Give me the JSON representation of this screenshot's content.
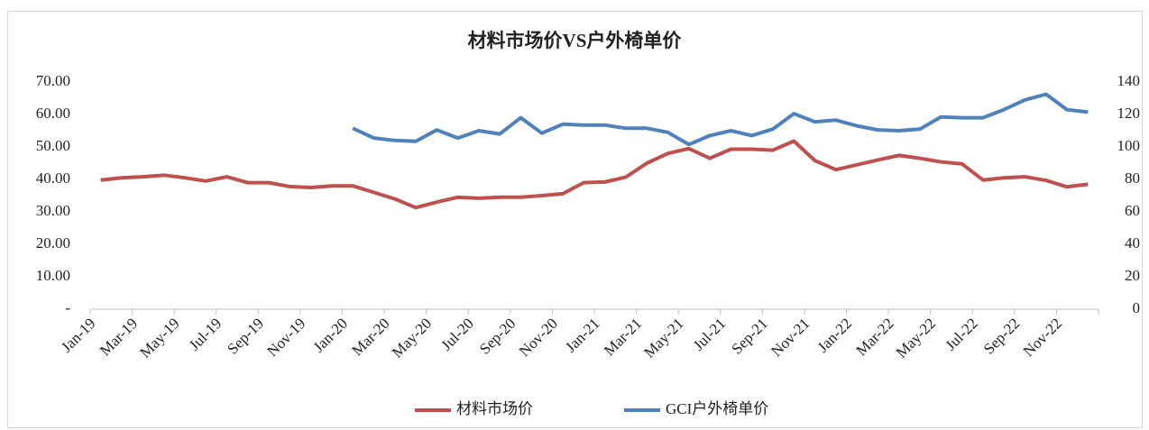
{
  "chart_data": {
    "type": "line",
    "title": "材料市场价VS户外椅单价",
    "categories": [
      "Jan-19",
      null,
      "Mar-19",
      null,
      "May-19",
      null,
      "Jul-19",
      null,
      "Sep-19",
      null,
      "Nov-19",
      null,
      "Jan-20",
      null,
      "Mar-20",
      null,
      "May-20",
      null,
      "Jul-20",
      null,
      "Sep-20",
      null,
      "Nov-20",
      null,
      "Jan-21",
      null,
      "Mar-21",
      null,
      "May-21",
      null,
      "Jul-21",
      null,
      "Sep-21",
      null,
      "Nov-21",
      null,
      "Jan-22",
      null,
      "Mar-22",
      null,
      "May-22",
      null,
      "Jul-22",
      null,
      "Sep-22",
      null,
      "Nov-22",
      null
    ],
    "series": [
      {
        "name": "材料市场价",
        "color": "#c0504d",
        "values": [
          39.8,
          40.5,
          40.8,
          41.3,
          40.5,
          39.5,
          40.8,
          39,
          39,
          37.8,
          37.5,
          38,
          38,
          36,
          34,
          31.3,
          33,
          34.5,
          34.2,
          34.5,
          34.5,
          35,
          35.6,
          39,
          39.2,
          40.7,
          45,
          48,
          49.5,
          46.5,
          49.3,
          49.3,
          49,
          51.8,
          45.8,
          43,
          44.5,
          46,
          47.4,
          46.5,
          45.4,
          44.8,
          39.8,
          40.5,
          40.8,
          39.7,
          37.7,
          38.5
        ]
      },
      {
        "name": "GCI户外椅单价",
        "color": "#4f81bd",
        "axis": "y2",
        "values": [
          null,
          null,
          null,
          null,
          null,
          null,
          null,
          null,
          null,
          null,
          null,
          null,
          111.5,
          105.5,
          104,
          103.5,
          110.5,
          105.5,
          110,
          108,
          118,
          108.5,
          114,
          113.5,
          113.5,
          111.5,
          111.5,
          109,
          101.5,
          107,
          110,
          107,
          111,
          120.5,
          115.5,
          116.5,
          113,
          110.5,
          110,
          111,
          118.5,
          118,
          118,
          123,
          129,
          132.5,
          123,
          121.5
        ]
      }
    ],
    "ylim": [
      0,
      70
    ],
    "yticks": [
      {
        "value": 0,
        "label": "-"
      },
      {
        "value": 10,
        "label": "10.00"
      },
      {
        "value": 20,
        "label": "20.00"
      },
      {
        "value": 30,
        "label": "30.00"
      },
      {
        "value": 40,
        "label": "40.00"
      },
      {
        "value": 50,
        "label": "50.00"
      },
      {
        "value": 60,
        "label": "60.00"
      },
      {
        "value": 70,
        "label": "70.00"
      }
    ],
    "y2lim": [
      0,
      140
    ],
    "y2ticks": [
      0,
      20,
      40,
      60,
      80,
      100,
      120,
      140
    ],
    "grid": false,
    "legend": "bottom"
  }
}
